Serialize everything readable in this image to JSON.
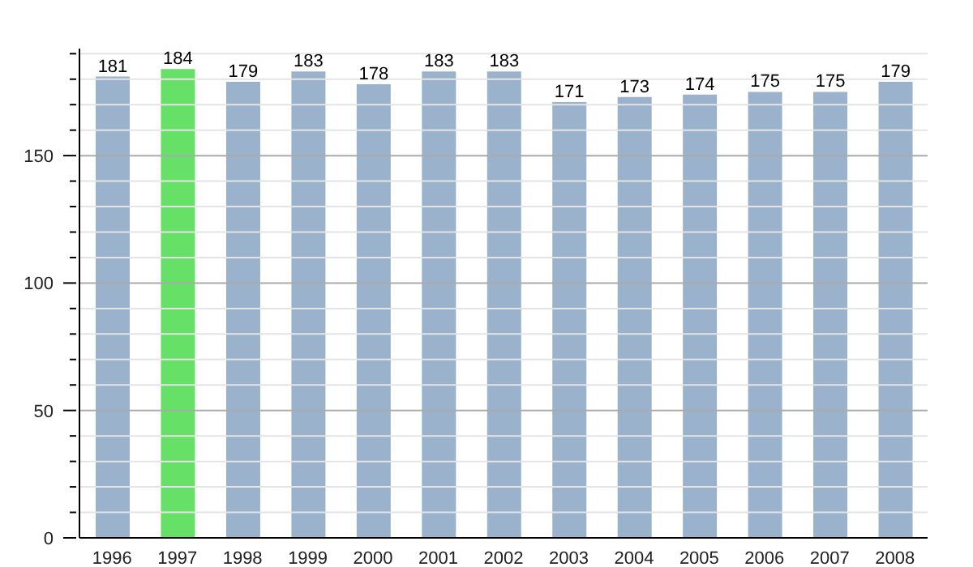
{
  "chart_data": {
    "type": "bar",
    "categories": [
      "1996",
      "1997",
      "1998",
      "1999",
      "2000",
      "2001",
      "2002",
      "2003",
      "2004",
      "2005",
      "2006",
      "2007",
      "2008"
    ],
    "values": [
      181,
      184,
      179,
      183,
      178,
      183,
      183,
      171,
      173,
      174,
      175,
      175,
      179
    ],
    "colors": [
      "#9ab2cb",
      "#66e066",
      "#9ab2cb",
      "#9ab2cb",
      "#9ab2cb",
      "#9ab2cb",
      "#9ab2cb",
      "#9ab2cb",
      "#9ab2cb",
      "#9ab2cb",
      "#9ab2cb",
      "#9ab2cb",
      "#9ab2cb"
    ],
    "ylim": [
      0,
      192
    ],
    "yticks": [
      0,
      {
        "value": 10,
        "label": null
      },
      {
        "value": 20,
        "label": null
      },
      {
        "value": 30,
        "label": null
      },
      {
        "value": 40,
        "label": null
      },
      50,
      {
        "value": 60,
        "label": null
      },
      {
        "value": 70,
        "label": null
      },
      {
        "value": 80,
        "label": null
      },
      {
        "value": 90,
        "label": null
      },
      100,
      {
        "value": 110,
        "label": null
      },
      {
        "value": 120,
        "label": null
      },
      {
        "value": 130,
        "label": null
      },
      {
        "value": 140,
        "label": null
      },
      150,
      {
        "value": 160,
        "label": null
      },
      {
        "value": 170,
        "label": null
      },
      {
        "value": 180,
        "label": null
      },
      {
        "value": 190,
        "label": null
      }
    ],
    "grid": true,
    "data_labels": true
  }
}
